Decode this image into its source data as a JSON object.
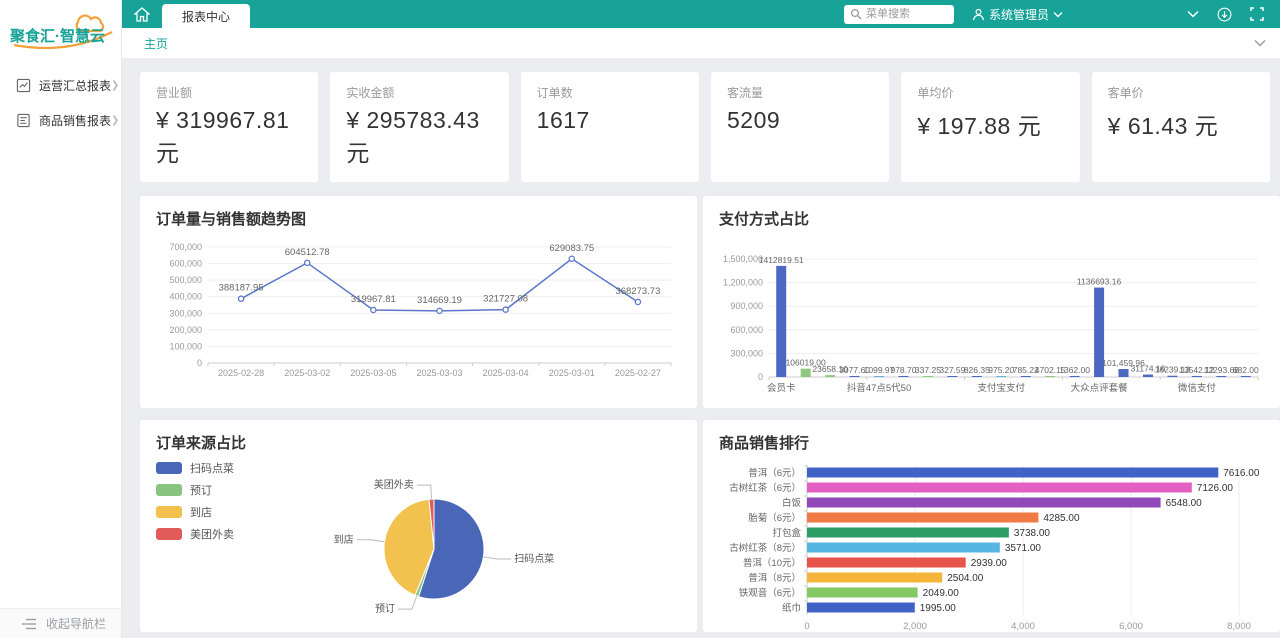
{
  "brand": {
    "logo": "聚食汇·智慧云"
  },
  "topbar": {
    "tab_label": "报表中心",
    "search_placeholder": "菜单搜索",
    "username": "系统管理员"
  },
  "breadcrumb": {
    "home_label": "主页"
  },
  "sidebar": {
    "items": [
      {
        "label": "运营汇总报表"
      },
      {
        "label": "商品销售报表"
      }
    ],
    "collapse_label": "收起导航栏"
  },
  "kpis": [
    {
      "label": "营业额",
      "value": "¥ 319967.81 元"
    },
    {
      "label": "实收金额",
      "value": "¥ 295783.43 元"
    },
    {
      "label": "订单数",
      "value": "1617"
    },
    {
      "label": "客流量",
      "value": "5209"
    },
    {
      "label": "单均价",
      "value": "¥ 197.88 元"
    },
    {
      "label": "客单价",
      "value": "¥ 61.43 元"
    }
  ],
  "colors": {
    "accent": "#17a398",
    "orange": "#f5a13a"
  },
  "chart_data": {
    "trend": {
      "type": "line",
      "title": "订单量与销售额趋势图",
      "categories": [
        "2025-02-28",
        "2025-03-02",
        "2025-03-05",
        "2025-03-03",
        "2025-03-04",
        "2025-03-01",
        "2025-02-27"
      ],
      "values": [
        388187.95,
        604512.78,
        319967.81,
        314669.19,
        321727.08,
        629083.75,
        368273.73
      ],
      "labels": [
        "388187.95",
        "604512.78",
        "319967.81",
        "314669.19",
        "321727.08",
        "629083.75",
        "368273.73"
      ],
      "ylim": [
        0,
        700000
      ],
      "yticks": [
        "0",
        "100,000",
        "200,000",
        "300,000",
        "400,000",
        "500,000",
        "600,000",
        "700,000"
      ],
      "color": "#5b77c9"
    },
    "payment": {
      "type": "bar",
      "title": "支付方式占比",
      "ylim": [
        0,
        1500000
      ],
      "yticks": [
        "0",
        "300,000",
        "600,000",
        "900,000",
        "1,200,000",
        "1,500,000"
      ],
      "xticks": [
        {
          "index": 0,
          "label": "会员卡"
        },
        {
          "index": 4,
          "label": "抖音47点5代50"
        },
        {
          "index": 9,
          "label": "支付宝支付"
        },
        {
          "index": 13,
          "label": "大众点评套餐"
        },
        {
          "index": 17,
          "label": "微信支付"
        }
      ],
      "bars": [
        {
          "label": "1412819.51",
          "value": 1412819.51,
          "color": "#4d68c3"
        },
        {
          "label": "106019.00",
          "value": 106019.0,
          "color": "#8fc87e"
        },
        {
          "label": "23658.10",
          "value": 23658.1,
          "color": "#8fc87e"
        },
        {
          "label": "3077.60",
          "value": 3077.6,
          "color": "#4d68c3"
        },
        {
          "label": "1099.97",
          "value": 1099.97,
          "color": "#5fb3d4"
        },
        {
          "label": "978.70",
          "value": 978.7,
          "color": "#4d68c3"
        },
        {
          "label": "337.25",
          "value": 337.25,
          "color": "#8fc87e"
        },
        {
          "label": "327.59",
          "value": 327.59,
          "color": "#4d68c3"
        },
        {
          "label": "826.35",
          "value": 826.35,
          "color": "#4d68c3"
        },
        {
          "label": "975.20",
          "value": 975.2,
          "color": "#5fb3d4"
        },
        {
          "label": "785.22",
          "value": 785.22,
          "color": "#4d68c3"
        },
        {
          "label": "4702.15",
          "value": 4702.15,
          "color": "#8fc87e"
        },
        {
          "label": "1362.00",
          "value": 1362.0,
          "color": "#4d68c3"
        },
        {
          "label": "1136693.16",
          "value": 1136693.16,
          "color": "#4d68c3"
        },
        {
          "label": "101,459.96",
          "value": 101459.96,
          "color": "#4d68c3"
        },
        {
          "label": "31174.16",
          "value": 31174.16,
          "color": "#4d68c3"
        },
        {
          "label": "16239.13",
          "value": 16239.13,
          "color": "#4d68c3"
        },
        {
          "label": "13542.12",
          "value": 13542.12,
          "color": "#4d68c3"
        },
        {
          "label": "12293.68",
          "value": 12293.68,
          "color": "#4d68c3"
        },
        {
          "label": "682.00",
          "value": 682.0,
          "color": "#4d68c3"
        }
      ]
    },
    "order_source": {
      "type": "pie",
      "title": "订单来源占比",
      "slices": [
        {
          "name": "扫码点菜",
          "value": 55,
          "color": "#4a66b7"
        },
        {
          "name": "预订",
          "value": 1.2,
          "color": "#88c57f"
        },
        {
          "name": "到店",
          "value": 42.2,
          "color": "#f2c14e"
        },
        {
          "name": "美团外卖",
          "value": 1.6,
          "color": "#e25b5b"
        }
      ]
    },
    "product_rank": {
      "type": "bar-horizontal",
      "title": "商品销售排行",
      "categories": [
        "普洱（6元）",
        "古树红茶（6元）",
        "白饭",
        "胎菊（6元）",
        "打包盒",
        "古树红茶（8元）",
        "普洱（10元）",
        "普洱（8元）",
        "铁观音（6元）",
        "纸巾"
      ],
      "values": [
        7616,
        7126,
        6548,
        4285,
        3738,
        3571,
        2939,
        2504,
        2049,
        1995
      ],
      "labels": [
        "7616.00",
        "7126.00",
        "6548.00",
        "4285.00",
        "3738.00",
        "3571.00",
        "2939.00",
        "2504.00",
        "2049.00",
        "1995.00"
      ],
      "colors": [
        "#3f63c6",
        "#e35fc2",
        "#9148b8",
        "#f07a44",
        "#2a9d67",
        "#55b6e2",
        "#e8534b",
        "#f5b53a",
        "#85c964",
        "#3f63c6"
      ],
      "xlim": [
        0,
        8000
      ],
      "xticks": [
        "0",
        "2,000",
        "4,000",
        "6,000",
        "8,000"
      ]
    }
  }
}
